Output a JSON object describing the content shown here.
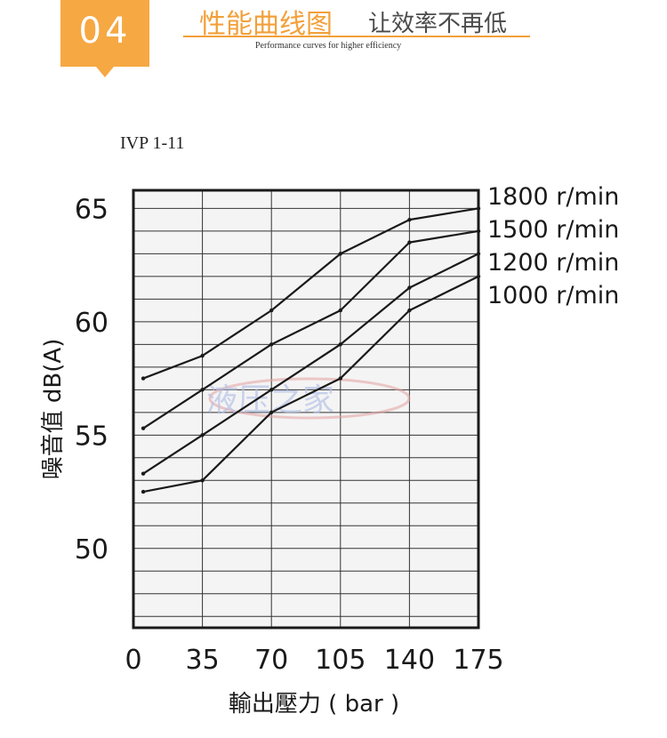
{
  "header": {
    "badge_number": "04",
    "title_cn": "性能曲线图",
    "subtitle_cn": "让效率不再低",
    "title_en": "Performance curves for higher efficiency"
  },
  "watermark": "液压之家",
  "colors": {
    "accent": "#f6a843",
    "line": "#1a1a1a",
    "plot_bg": "#f4f4f4",
    "grid": "#333333"
  },
  "chart_data": {
    "type": "line",
    "title": "IVP 1-11",
    "xlabel": "輸出壓力 ( bar )",
    "ylabel": "噪音值 dB(A)",
    "xlim": [
      0,
      175
    ],
    "ylim": [
      46.5,
      65.8
    ],
    "xticks": [
      0,
      35,
      70,
      105,
      140,
      175
    ],
    "xtick_labels": [
      "0",
      "35",
      "70",
      "105",
      "140",
      "175"
    ],
    "yticks": [
      50,
      55,
      60,
      65
    ],
    "ytick_labels": [
      "50",
      "55",
      "60",
      "65"
    ],
    "grid": true,
    "legend": "right",
    "series": [
      {
        "name": "1800 r/min",
        "x": [
          5,
          35,
          70,
          105,
          140,
          175
        ],
        "y": [
          57.5,
          58.5,
          60.5,
          63.0,
          64.5,
          65.0
        ]
      },
      {
        "name": "1500 r/min",
        "x": [
          5,
          35,
          70,
          105,
          140,
          175
        ],
        "y": [
          55.3,
          57.0,
          59.0,
          60.5,
          63.5,
          64.0
        ]
      },
      {
        "name": "1200 r/min",
        "x": [
          5,
          35,
          70,
          105,
          140,
          175
        ],
        "y": [
          53.3,
          55.0,
          57.0,
          59.0,
          61.5,
          63.0
        ]
      },
      {
        "name": "1000 r/min",
        "x": [
          5,
          35,
          70,
          105,
          140,
          175
        ],
        "y": [
          52.5,
          53.0,
          56.0,
          57.5,
          60.5,
          62.0
        ]
      }
    ]
  }
}
